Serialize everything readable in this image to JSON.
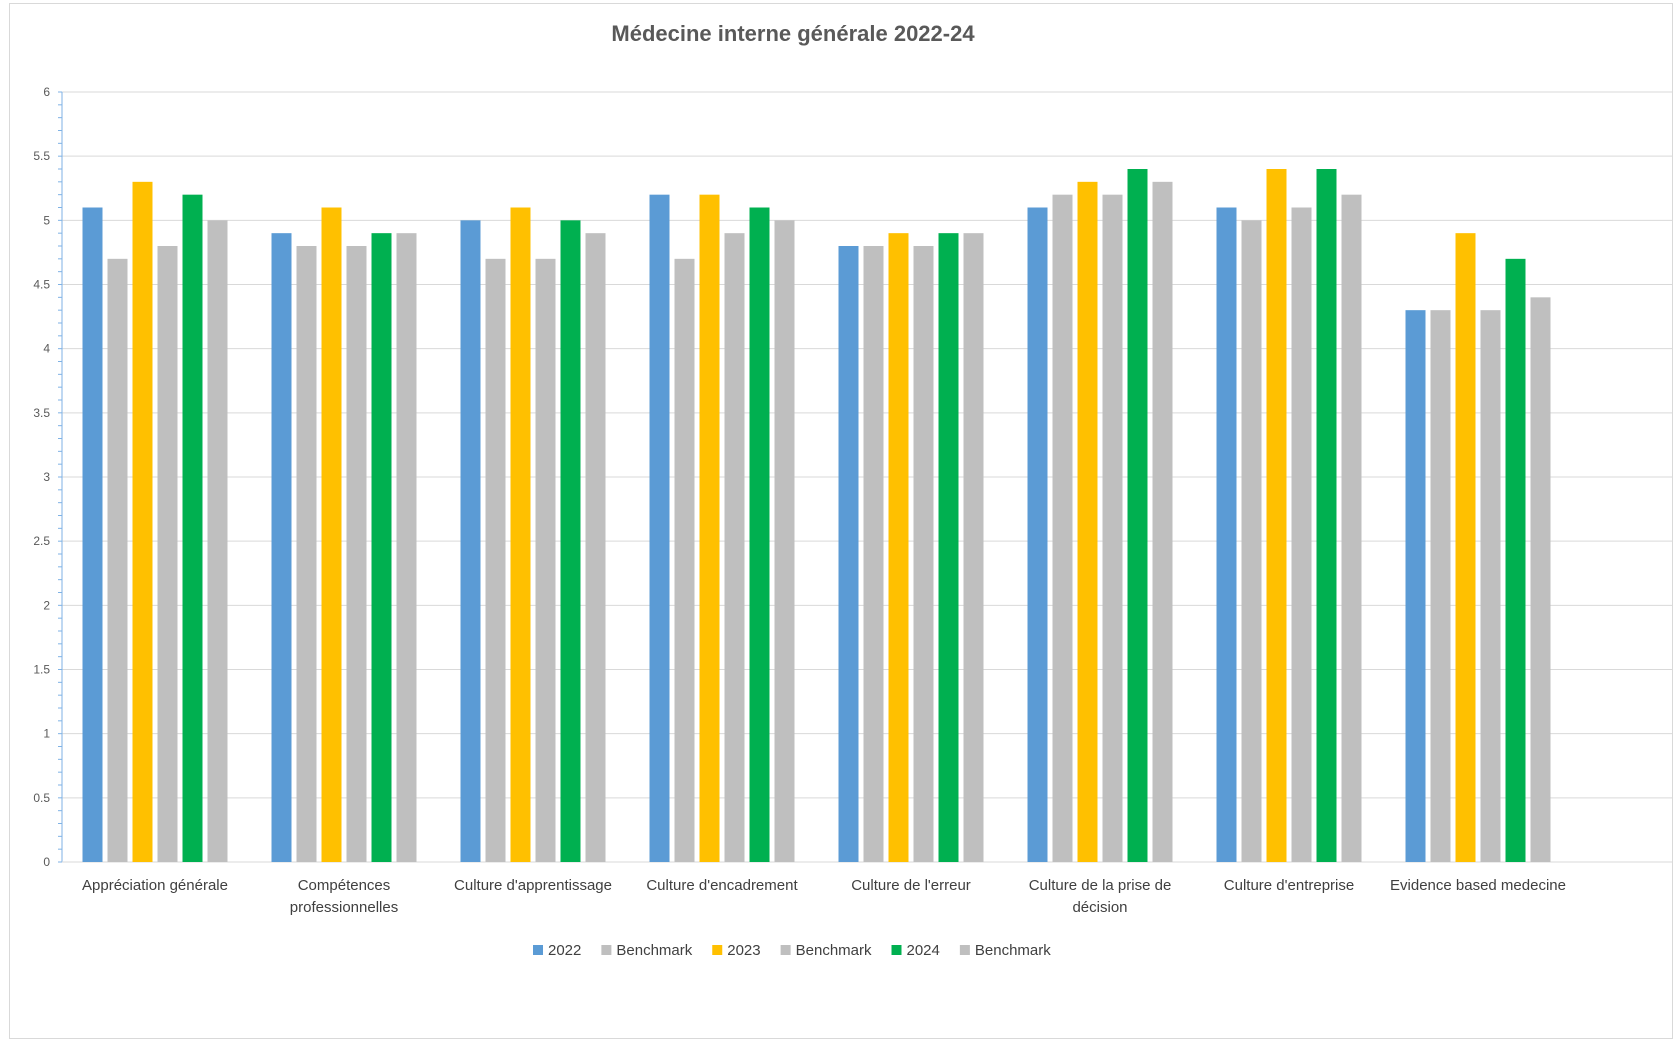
{
  "chart_data": {
    "type": "bar",
    "title": "Médecine interne générale  2022-24",
    "xlabel": "",
    "ylabel": "",
    "ylim": [
      0,
      6
    ],
    "yticks": [
      "0",
      "0.5",
      "1",
      "1.5",
      "2",
      "2.5",
      "3",
      "3.5",
      "4",
      "4.5",
      "5",
      "5.5",
      "6"
    ],
    "grid": true,
    "legend_position": "bottom",
    "categories": [
      [
        "Appréciation générale"
      ],
      [
        "Compétences",
        "professionnelles"
      ],
      [
        "Culture d'apprentissage"
      ],
      [
        "Culture d'encadrement"
      ],
      [
        "Culture de l'erreur"
      ],
      [
        "Culture de la prise de",
        "décision"
      ],
      [
        "Culture d'entreprise"
      ],
      [
        "Evidence based medecine"
      ]
    ],
    "series": [
      {
        "name": "2022",
        "color": "#5b9bd5",
        "values": [
          5.1,
          4.9,
          5.0,
          5.2,
          4.8,
          5.1,
          5.1,
          4.3
        ]
      },
      {
        "name": "Benchmark",
        "color": "#bfbfbf",
        "values": [
          4.7,
          4.8,
          4.7,
          4.7,
          4.8,
          5.2,
          5.0,
          4.3
        ]
      },
      {
        "name": "2023",
        "color": "#ffc000",
        "values": [
          5.3,
          5.1,
          5.1,
          5.2,
          4.9,
          5.3,
          5.4,
          4.9
        ]
      },
      {
        "name": "Benchmark",
        "color": "#bfbfbf",
        "values": [
          4.8,
          4.8,
          4.7,
          4.9,
          4.8,
          5.2,
          5.1,
          4.3
        ]
      },
      {
        "name": "2024",
        "color": "#00b050",
        "values": [
          5.2,
          4.9,
          5.0,
          5.1,
          4.9,
          5.4,
          5.4,
          4.7
        ]
      },
      {
        "name": "Benchmark",
        "color": "#bfbfbf",
        "values": [
          5.0,
          4.9,
          4.9,
          5.0,
          4.9,
          5.3,
          5.2,
          4.4
        ]
      }
    ]
  }
}
